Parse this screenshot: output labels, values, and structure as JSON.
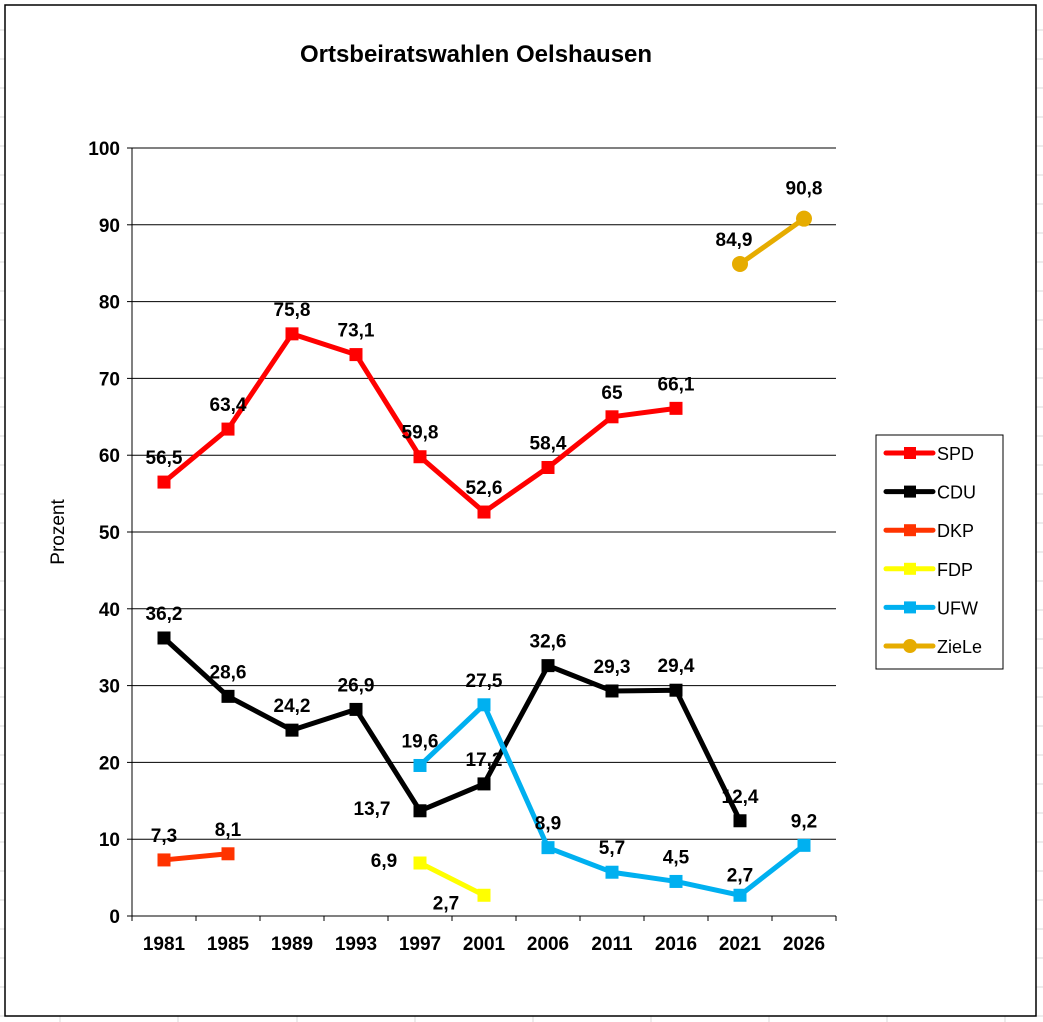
{
  "chart_data": {
    "type": "line",
    "title": "Ortsbeiratswahlen Oelshausen",
    "xlabel": "",
    "ylabel": "Prozent",
    "ylim": [
      0,
      100
    ],
    "yticks": [
      "0",
      "10",
      "20",
      "30",
      "40",
      "50",
      "60",
      "70",
      "80",
      "90",
      "100"
    ],
    "grid": true,
    "legend_position": "right",
    "categories": [
      "1981",
      "1985",
      "1989",
      "1993",
      "1997",
      "2001",
      "2006",
      "2011",
      "2016",
      "2021",
      "2026"
    ],
    "series": [
      {
        "name": "SPD",
        "color": "#ff0000",
        "marker": "square",
        "values": [
          56.5,
          63.4,
          75.8,
          73.1,
          59.8,
          52.6,
          58.4,
          65,
          66.1,
          null,
          null
        ],
        "labels": [
          "56,5",
          "63,4",
          "75,8",
          "73,1",
          "59,8",
          "52,6",
          "58,4",
          "65",
          "66,1",
          null,
          null
        ]
      },
      {
        "name": "CDU",
        "color": "#000000",
        "marker": "square",
        "values": [
          36.2,
          28.6,
          24.2,
          26.9,
          13.7,
          17.2,
          32.6,
          29.3,
          29.4,
          12.4,
          null
        ],
        "labels": [
          "36,2",
          "28,6",
          "24,2",
          "26,9",
          "13,7",
          "17,2",
          "32,6",
          "29,3",
          "29,4",
          "12,4",
          null
        ]
      },
      {
        "name": "DKP",
        "color": "#ff3300",
        "marker": "square",
        "values": [
          7.3,
          8.1,
          null,
          null,
          null,
          null,
          null,
          null,
          null,
          null,
          null
        ],
        "labels": [
          "7,3",
          "8,1",
          null,
          null,
          null,
          null,
          null,
          null,
          null,
          null,
          null
        ]
      },
      {
        "name": "FDP",
        "color": "#ffff00",
        "marker": "square",
        "values": [
          null,
          null,
          null,
          null,
          6.9,
          2.7,
          null,
          null,
          null,
          null,
          null
        ],
        "labels": [
          null,
          null,
          null,
          null,
          "6,9",
          "2,7",
          null,
          null,
          null,
          null,
          null
        ]
      },
      {
        "name": "UFW",
        "color": "#00b0f0",
        "marker": "square",
        "values": [
          null,
          null,
          null,
          null,
          19.6,
          27.5,
          8.9,
          5.7,
          4.5,
          2.7,
          9.2
        ],
        "labels": [
          null,
          null,
          null,
          null,
          "19,6",
          "27,5",
          "8,9",
          "5,7",
          "4,5",
          "2,7",
          "9,2"
        ]
      },
      {
        "name": "ZieLe",
        "color": "#e6ac00",
        "marker": "circle",
        "values": [
          null,
          null,
          null,
          null,
          null,
          null,
          null,
          null,
          null,
          84.9,
          90.8
        ],
        "labels": [
          null,
          null,
          null,
          null,
          null,
          null,
          null,
          null,
          null,
          "84,9",
          "90,8"
        ]
      }
    ]
  }
}
